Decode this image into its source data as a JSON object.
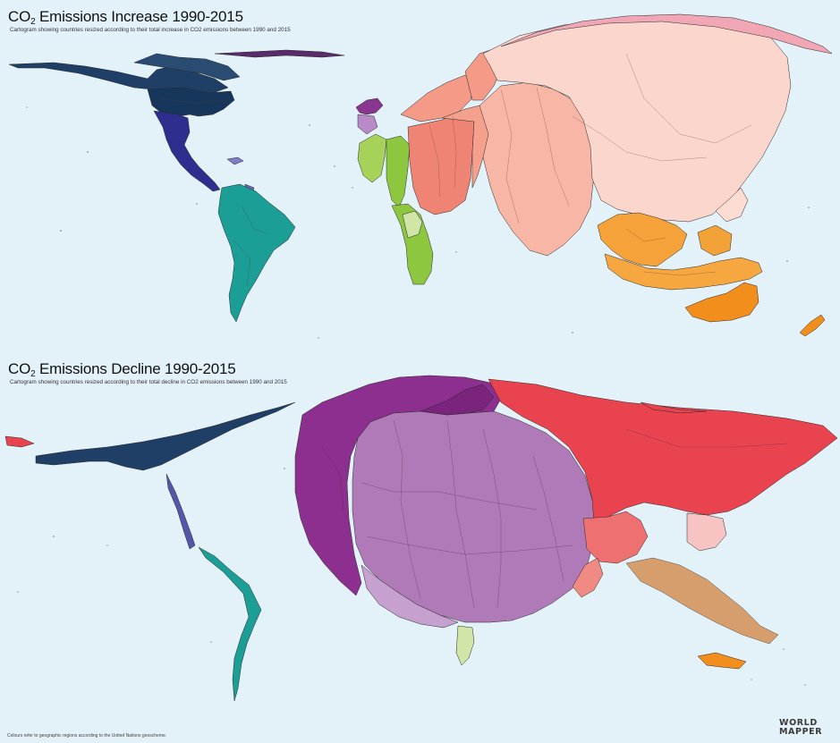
{
  "increase": {
    "title_main": "CO",
    "title_sub": "2",
    "title_rest": " Emissions Increase 1990-2015",
    "subtitle": "Cartogram showing countries resized according to their total increase in CO2 emissions between 1990 and 2015"
  },
  "decline": {
    "title_main": "CO",
    "title_sub": "2",
    "title_rest": " Emissions Decline 1990-2015",
    "subtitle": "Cartogram showing countries resized according to their total decline in CO2 emissions between 1990 and 2015"
  },
  "footnote": "Colours refer to geographic regions according to the United Nations geoscheme.",
  "logo": {
    "line1": "WORLD",
    "line2": "MAPPER"
  },
  "colors": {
    "ocean": "#e3f1f8",
    "north_america": "#1f3f66",
    "central_america": "#2e2e8f",
    "south_america": "#1a9e96",
    "africa_west": "#8dc63f",
    "africa_south": "#cfe6a8",
    "europe": "#b98ac8",
    "western_asia": "#f4a08c",
    "southern_asia": "#f7b6a6",
    "eastern_asia": "#fbd6cc",
    "southeast_asia": "#f5a23a",
    "oceania": "#f28e1c",
    "eastern_europe": "#e8434f",
    "central_europe": "#8c2f8f",
    "western_europe": "#a865ae"
  }
}
